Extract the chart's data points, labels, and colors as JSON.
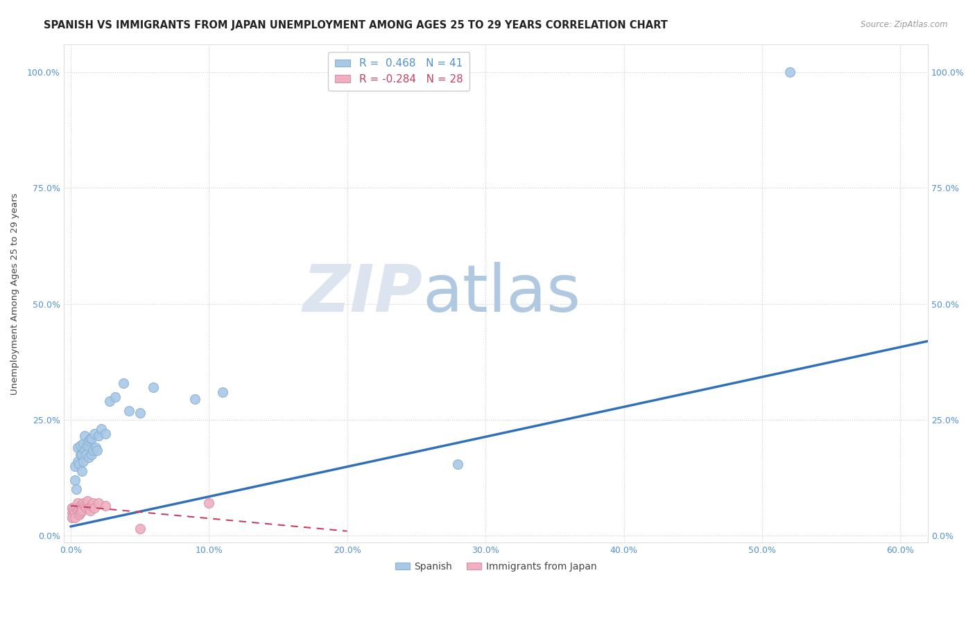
{
  "title": "SPANISH VS IMMIGRANTS FROM JAPAN UNEMPLOYMENT AMONG AGES 25 TO 29 YEARS CORRELATION CHART",
  "source": "Source: ZipAtlas.com",
  "xlabel_ticks": [
    "0.0%",
    "",
    "",
    "",
    "",
    "",
    "10.0%",
    "",
    "",
    "",
    "",
    "",
    "20.0%",
    "",
    "",
    "",
    "",
    "",
    "30.0%",
    "",
    "",
    "",
    "",
    "",
    "40.0%",
    "",
    "",
    "",
    "",
    "",
    "50.0%",
    "",
    "",
    "",
    "",
    "",
    "60.0%"
  ],
  "xlabel_vals": [
    0.0,
    0.1,
    0.2,
    0.3,
    0.4,
    0.5,
    0.6
  ],
  "ylabel_ticks": [
    "0.0%",
    "25.0%",
    "50.0%",
    "75.0%",
    "100.0%"
  ],
  "ylabel_vals": [
    0.0,
    0.25,
    0.5,
    0.75,
    1.0
  ],
  "right_ytick_labels": [
    "100.0%",
    "75.0%",
    "50.0%",
    "25.0%",
    "0.0%"
  ],
  "xlim": [
    -0.005,
    0.62
  ],
  "ylim": [
    -0.015,
    1.06
  ],
  "legend_spanish_R": "0.468",
  "legend_spanish_N": "41",
  "legend_japan_R": "-0.284",
  "legend_japan_N": "28",
  "spanish_color": "#a8c8e8",
  "spanish_edge_color": "#8ab0d0",
  "spanish_line_color": "#3070b8",
  "japan_color": "#f0b0c0",
  "japan_edge_color": "#d890a8",
  "japan_line_color": "#c84060",
  "spanish_line_x0": 0.0,
  "spanish_line_x1": 0.62,
  "spanish_line_y0": 0.02,
  "spanish_line_y1": 0.42,
  "japan_line_x0": 0.0,
  "japan_line_x1": 0.2,
  "japan_line_y0": 0.065,
  "japan_line_y1": 0.01,
  "spanish_points_x": [
    0.001,
    0.001,
    0.002,
    0.003,
    0.003,
    0.004,
    0.005,
    0.005,
    0.006,
    0.007,
    0.007,
    0.008,
    0.008,
    0.009,
    0.009,
    0.01,
    0.01,
    0.011,
    0.012,
    0.013,
    0.013,
    0.014,
    0.015,
    0.015,
    0.016,
    0.017,
    0.018,
    0.019,
    0.02,
    0.022,
    0.025,
    0.028,
    0.032,
    0.038,
    0.042,
    0.05,
    0.06,
    0.09,
    0.11,
    0.28,
    0.52
  ],
  "spanish_points_y": [
    0.06,
    0.04,
    0.05,
    0.12,
    0.15,
    0.1,
    0.16,
    0.19,
    0.155,
    0.175,
    0.195,
    0.14,
    0.175,
    0.16,
    0.2,
    0.185,
    0.215,
    0.175,
    0.195,
    0.17,
    0.205,
    0.21,
    0.175,
    0.21,
    0.185,
    0.22,
    0.19,
    0.185,
    0.215,
    0.23,
    0.22,
    0.29,
    0.3,
    0.33,
    0.27,
    0.265,
    0.32,
    0.295,
    0.31,
    0.155,
    1.0
  ],
  "japan_points_x": [
    0.001,
    0.001,
    0.001,
    0.002,
    0.003,
    0.003,
    0.004,
    0.005,
    0.005,
    0.006,
    0.006,
    0.007,
    0.007,
    0.008,
    0.008,
    0.009,
    0.01,
    0.011,
    0.012,
    0.013,
    0.014,
    0.015,
    0.016,
    0.017,
    0.02,
    0.025,
    0.05,
    0.1
  ],
  "japan_points_y": [
    0.05,
    0.04,
    0.06,
    0.055,
    0.05,
    0.04,
    0.06,
    0.055,
    0.07,
    0.06,
    0.045,
    0.065,
    0.05,
    0.06,
    0.055,
    0.07,
    0.065,
    0.06,
    0.075,
    0.06,
    0.055,
    0.065,
    0.07,
    0.06,
    0.07,
    0.065,
    0.015,
    0.07
  ],
  "grid_color": "#cccccc",
  "background_color": "#ffffff",
  "title_fontsize": 10.5,
  "axis_label_fontsize": 9.5,
  "tick_fontsize": 9,
  "watermark_fontsize_zip": 68,
  "watermark_fontsize_atlas": 68,
  "watermark_color_ZIP": "#dce4f0",
  "watermark_color_atlas": "#b0c8e0"
}
